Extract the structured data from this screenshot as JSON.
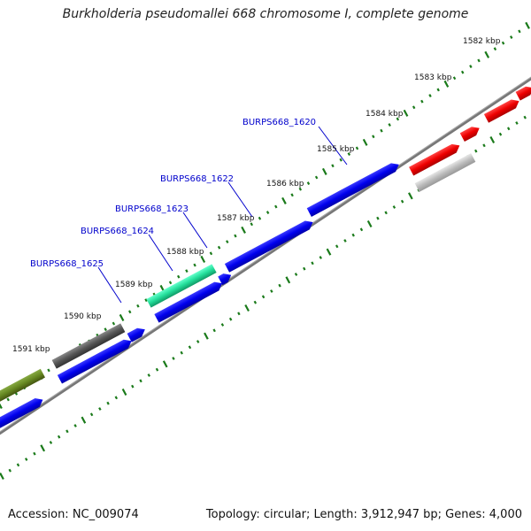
{
  "title": "Burkholderia pseudomallei 668 chromosome I, complete genome",
  "footer": {
    "accession": "Accession: NC_009074",
    "summary": "Topology: circular; Length: 3,912,947 bp; Genes: 4,000"
  },
  "ticks": {
    "labels": [
      "1582 kbp",
      "1583 kbp",
      "1584 kbp",
      "1585 kbp",
      "1586 kbp",
      "1587 kbp",
      "1588 kbp",
      "1589 kbp",
      "1590 kbp",
      "1591 kbp"
    ]
  },
  "genes": {
    "labels": [
      "BURPS668_1620",
      "BURPS668_1622",
      "BURPS668_1623",
      "BURPS668_1624",
      "BURPS668_1625"
    ]
  },
  "colors": {
    "backbone": "#777777",
    "tick": "#1a7a1a",
    "cds_forward": "#0000ee",
    "cds_red": "#ee0000",
    "cds_green": "#22dd99",
    "cds_olive": "#668822",
    "cds_gray_dark": "#555555",
    "cds_gray_light": "#bbbbbb",
    "label": "#0000cc"
  }
}
